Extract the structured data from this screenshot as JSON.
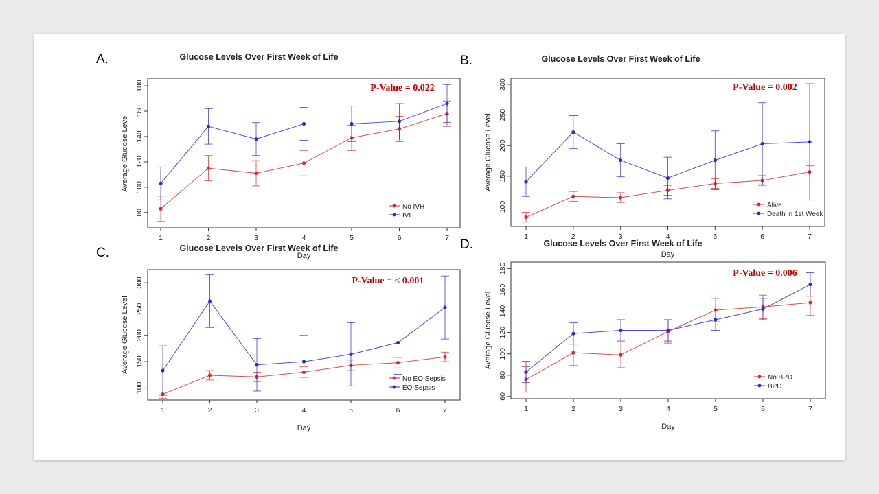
{
  "colors": {
    "series_a": "#d42b2b",
    "series_b": "#2a2ad0",
    "pvalue": "#c00000"
  },
  "chart_data": [
    {
      "panel": "A.",
      "type": "line",
      "title": "Glucose Levels Over First Week of Life",
      "xlabel": "Day",
      "ylabel": "Average Glucose Level",
      "x": [
        1,
        2,
        3,
        4,
        5,
        6,
        7
      ],
      "x_ticks": [
        "1",
        "2",
        "3",
        "4",
        "5",
        "6",
        "7"
      ],
      "xlim": [
        1,
        7
      ],
      "ylim": [
        68,
        186
      ],
      "y_ticks": [
        80,
        100,
        120,
        140,
        160,
        180
      ],
      "annotation": "P-Value = 0.022",
      "legend_position": "bottom-right",
      "error_bars": true,
      "series": [
        {
          "name": "No IVH",
          "values": [
            83,
            115,
            111,
            119,
            139,
            146,
            158
          ],
          "err": [
            10,
            10,
            10,
            10,
            10,
            10,
            10
          ]
        },
        {
          "name": "IVH",
          "values": [
            103,
            148,
            138,
            150,
            150,
            152,
            166
          ],
          "err": [
            13,
            14,
            13,
            13,
            14,
            14,
            15
          ]
        }
      ]
    },
    {
      "panel": "B.",
      "type": "line",
      "title": "Glucose Levels Over First Week of Life",
      "xlabel": "Day",
      "ylabel": "Average Glucose Level",
      "x": [
        1,
        2,
        3,
        4,
        5,
        6,
        7
      ],
      "x_ticks": [
        "1",
        "2",
        "3",
        "4",
        "5",
        "6",
        "7"
      ],
      "xlim": [
        1,
        7
      ],
      "ylim": [
        68,
        310
      ],
      "y_ticks": [
        100,
        150,
        200,
        250,
        300
      ],
      "annotation": "P-Value = 0.002",
      "legend_position": "bottom-right",
      "error_bars": true,
      "series": [
        {
          "name": "Alive",
          "values": [
            83,
            117,
            115,
            127,
            138,
            143,
            157
          ],
          "err": [
            8,
            8,
            8,
            8,
            8,
            8,
            10
          ]
        },
        {
          "name": "Death in 1st Week",
          "values": [
            141,
            222,
            176,
            147,
            176,
            203,
            206
          ],
          "err": [
            24,
            27,
            27,
            34,
            48,
            67,
            95
          ]
        }
      ]
    },
    {
      "panel": "C.",
      "type": "line",
      "title": "Glucose Levels Over First Week of Life",
      "xlabel": "Day",
      "ylabel": "Average Glucose Level",
      "x": [
        1,
        2,
        3,
        4,
        5,
        6,
        7
      ],
      "x_ticks": [
        "1",
        "2",
        "3",
        "4",
        "5",
        "6",
        "7"
      ],
      "xlim": [
        1,
        7
      ],
      "ylim": [
        77,
        325
      ],
      "y_ticks": [
        100,
        150,
        200,
        250,
        300
      ],
      "annotation": "P-Value = < 0.001",
      "legend_position": "bottom-right",
      "error_bars": true,
      "series": [
        {
          "name": "No EO Sepsis",
          "values": [
            88,
            124,
            121,
            130,
            143,
            148,
            159
          ],
          "err": [
            8,
            9,
            9,
            10,
            10,
            10,
            9
          ]
        },
        {
          "name": "EO Sepsis",
          "values": [
            133,
            265,
            144,
            150,
            164,
            186,
            253
          ],
          "err": [
            47,
            50,
            50,
            50,
            60,
            60,
            60
          ]
        }
      ]
    },
    {
      "panel": "D.",
      "type": "line",
      "title": "Glucose Levels Over First Week of Life",
      "xlabel": "Day",
      "ylabel": "Average Glucose Level",
      "x": [
        1,
        2,
        3,
        4,
        5,
        6,
        7
      ],
      "x_ticks": [
        "1",
        "2",
        "3",
        "4",
        "5",
        "6",
        "7"
      ],
      "xlim": [
        1,
        7
      ],
      "ylim": [
        58,
        186
      ],
      "y_ticks": [
        60,
        80,
        100,
        120,
        140,
        160,
        180
      ],
      "annotation": "P-Value = 0.006",
      "legend_position": "bottom-right",
      "error_bars": true,
      "series": [
        {
          "name": "No BPD",
          "values": [
            76,
            101,
            99,
            121,
            141,
            144,
            148
          ],
          "err": [
            12,
            12,
            12,
            11,
            11,
            11,
            12
          ]
        },
        {
          "name": "BPD",
          "values": [
            83,
            119,
            122,
            122,
            132,
            142,
            165
          ],
          "err": [
            10,
            10,
            10,
            10,
            10,
            10,
            11
          ]
        }
      ]
    }
  ]
}
